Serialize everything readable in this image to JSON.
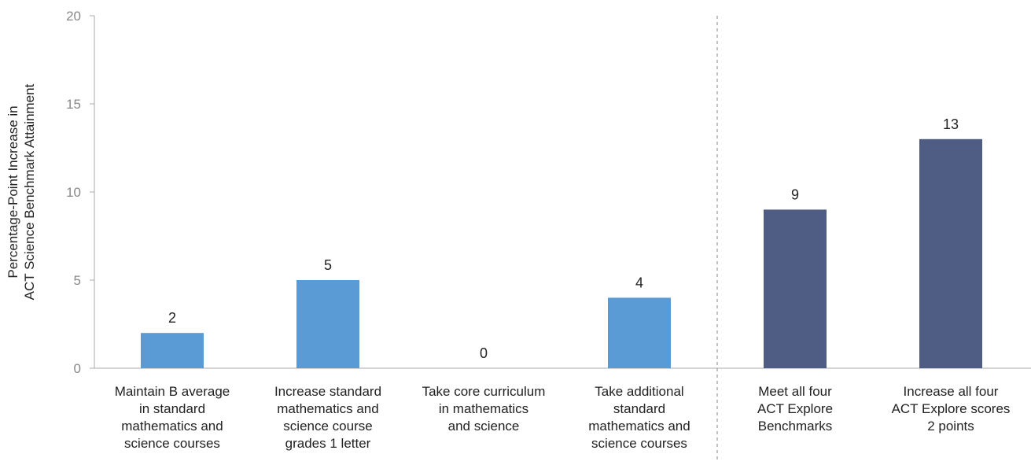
{
  "chart_data": {
    "type": "bar",
    "title": "",
    "xlabel": "",
    "ylabel_lines": [
      "Percentage-Point Increase in",
      "ACT Science Benchmark Attainment"
    ],
    "ylim": [
      0,
      20
    ],
    "yticks": [
      "0",
      "5",
      "10",
      "15",
      "20"
    ],
    "grid": false,
    "categories": [
      {
        "label_lines": [
          "Maintain B average",
          "in standard",
          "mathematics and",
          "science courses"
        ],
        "value": 2,
        "value_label": "2",
        "group": "coursework"
      },
      {
        "label_lines": [
          "Increase standard",
          "mathematics and",
          "science course",
          "grades 1 letter"
        ],
        "value": 5,
        "value_label": "5",
        "group": "coursework"
      },
      {
        "label_lines": [
          "Take core curriculum",
          "in mathematics",
          "and science"
        ],
        "value": 0,
        "value_label": "0",
        "group": "coursework"
      },
      {
        "label_lines": [
          "Take additional",
          "standard",
          "mathematics and",
          "science courses"
        ],
        "value": 4,
        "value_label": "4",
        "group": "coursework"
      },
      {
        "label_lines": [
          "Meet all four",
          "ACT Explore",
          "Benchmarks"
        ],
        "value": 9,
        "value_label": "9",
        "group": "explore"
      },
      {
        "label_lines": [
          "Increase all four",
          "ACT Explore scores",
          "2 points"
        ],
        "value": 13,
        "value_label": "13",
        "group": "explore"
      }
    ],
    "colors": {
      "coursework": "#5b9bd5",
      "explore": "#4f5d85",
      "axis": "#aaaaaa",
      "tick_text": "#888888",
      "text": "#222222",
      "divider": "#999999"
    },
    "divider_after_index": 3
  }
}
